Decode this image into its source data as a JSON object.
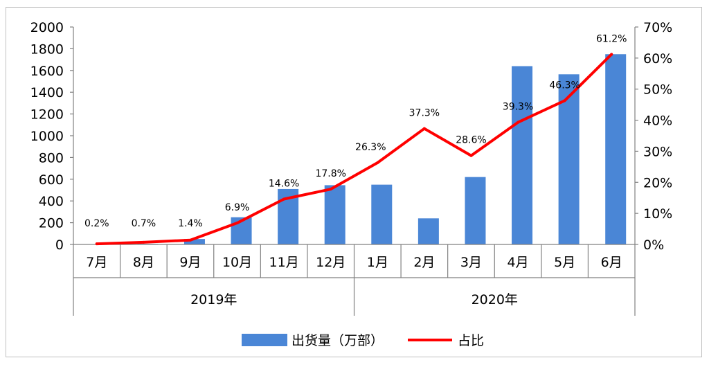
{
  "chart_data": {
    "type": "bar",
    "categories": [
      "7月",
      "8月",
      "9月",
      "10月",
      "11月",
      "12月",
      "1月",
      "2月",
      "3月",
      "4月",
      "5月",
      "6月"
    ],
    "groups": [
      {
        "label": "2019年",
        "categories": [
          "7月",
          "8月",
          "9月",
          "10月",
          "11月",
          "12月"
        ]
      },
      {
        "label": "2020年",
        "categories": [
          "1月",
          "2月",
          "3月",
          "4月",
          "5月",
          "6月"
        ]
      }
    ],
    "series": [
      {
        "name": "出货量（万部）",
        "type": "bar",
        "axis": "left",
        "color": "#4a86d6",
        "values": [
          0,
          5,
          50,
          250,
          510,
          545,
          550,
          240,
          620,
          1640,
          1565,
          1750
        ]
      },
      {
        "name": "占比",
        "type": "line",
        "axis": "right",
        "color": "#ff0000",
        "values": [
          0.2,
          0.7,
          1.4,
          6.9,
          14.6,
          17.8,
          26.3,
          37.3,
          28.6,
          39.3,
          46.3,
          61.2
        ],
        "labels": [
          "0.2%",
          "0.7%",
          "1.4%",
          "6.9%",
          "14.6%",
          "17.8%",
          "26.3%",
          "37.3%",
          "28.6%",
          "39.3%",
          "46.3%",
          "61.2%"
        ]
      }
    ],
    "y_left": {
      "min": 0,
      "max": 2000,
      "ticks": [
        "0",
        "200",
        "400",
        "600",
        "800",
        "1000",
        "1200",
        "1400",
        "1600",
        "1800",
        "2000"
      ]
    },
    "y_right": {
      "min": 0,
      "max": 70,
      "ticks": [
        "0%",
        "10%",
        "20%",
        "30%",
        "40%",
        "50%",
        "60%",
        "70%"
      ]
    },
    "grid": false,
    "legend_position": "bottom"
  }
}
